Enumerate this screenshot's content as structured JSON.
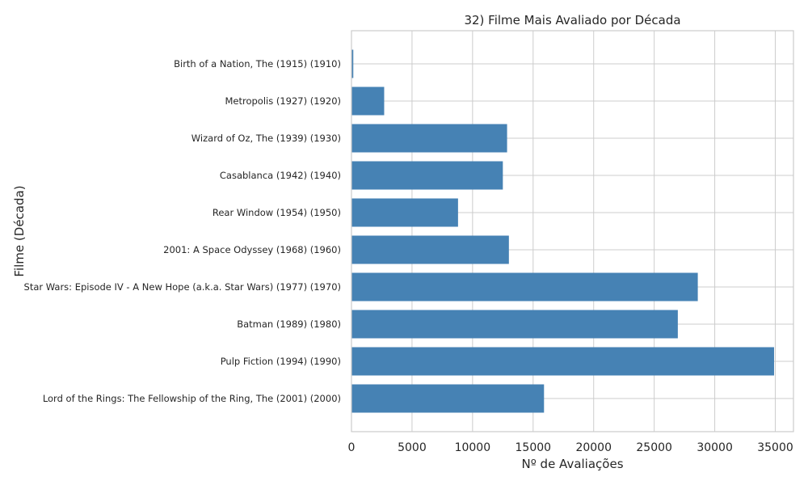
{
  "chart_data": {
    "type": "bar",
    "orientation": "horizontal",
    "title": "32) Filme Mais Avaliado por Década",
    "xlabel": "Nº de Avaliações",
    "ylabel": "Filme (Década)",
    "xlim": [
      0,
      36500
    ],
    "x_ticks": [
      "0",
      "5000",
      "10000",
      "15000",
      "20000",
      "25000",
      "30000",
      "35000"
    ],
    "x_tick_values": [
      0,
      5000,
      10000,
      15000,
      20000,
      25000,
      30000,
      35000
    ],
    "grid": true,
    "bar_color": "#4682b4",
    "categories": [
      "Birth of a Nation, The (1915) (1910)",
      "Metropolis (1927) (1920)",
      "Wizard of Oz, The (1939) (1930)",
      "Casablanca (1942) (1940)",
      "Rear Window (1954) (1950)",
      "2001: A Space Odyssey (1968) (1960)",
      "Star Wars: Episode IV - A New Hope (a.k.a. Star Wars) (1977) (1970)",
      "Batman (1989) (1980)",
      "Pulp Fiction (1994) (1990)",
      "Lord of the Rings: The Fellowship of the Ring, The (2001) (2000)"
    ],
    "values": [
      150,
      2700,
      12850,
      12500,
      8800,
      13000,
      28600,
      26950,
      34900,
      15900
    ]
  }
}
